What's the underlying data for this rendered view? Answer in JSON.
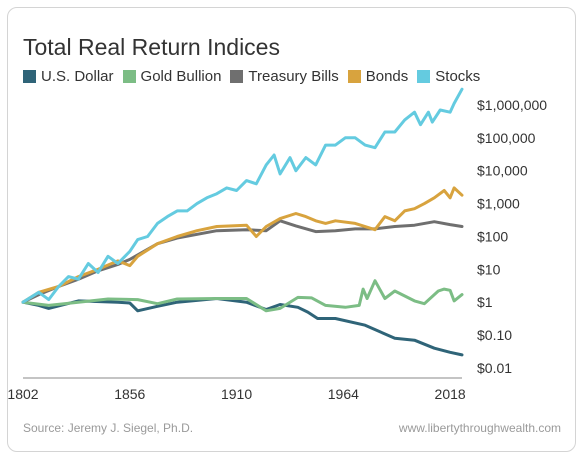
{
  "chart_data": {
    "type": "line",
    "title": "Total Real Return Indices",
    "yscale": "log",
    "ylim": [
      0.01,
      2000000
    ],
    "xlim": [
      1802,
      2024
    ],
    "x_ticks": [
      1802,
      1856,
      1910,
      1964,
      2018
    ],
    "y_ticks": [
      {
        "value": 1000000,
        "label": "$1,000,000"
      },
      {
        "value": 100000,
        "label": "$100,000"
      },
      {
        "value": 10000,
        "label": "$10,000"
      },
      {
        "value": 1000,
        "label": "$1,000"
      },
      {
        "value": 100,
        "label": "$100"
      },
      {
        "value": 10,
        "label": "$10"
      },
      {
        "value": 1,
        "label": "$1"
      },
      {
        "value": 0.1,
        "label": "$0.10"
      },
      {
        "value": 0.01,
        "label": "$0.01"
      }
    ],
    "legend_position": "top",
    "series": [
      {
        "name": "U.S. Dollar",
        "color": "#2f6478",
        "x": [
          1802,
          1810,
          1815,
          1830,
          1850,
          1856,
          1860,
          1870,
          1880,
          1900,
          1915,
          1925,
          1932,
          1941,
          1946,
          1951,
          1960,
          1975,
          1990,
          2000,
          2010,
          2018,
          2024
        ],
        "y": [
          1,
          0.8,
          0.65,
          1.1,
          1,
          0.95,
          0.55,
          0.75,
          1,
          1.3,
          1,
          0.6,
          0.85,
          0.7,
          0.5,
          0.32,
          0.32,
          0.2,
          0.08,
          0.07,
          0.04,
          0.03,
          0.025
        ]
      },
      {
        "name": "Gold Bullion",
        "color": "#7cbd85",
        "x": [
          1802,
          1815,
          1830,
          1845,
          1860,
          1870,
          1880,
          1900,
          1915,
          1925,
          1932,
          1941,
          1948,
          1955,
          1965,
          1972,
          1974,
          1976,
          1980,
          1985,
          1990,
          2000,
          2005,
          2012,
          2015,
          2018,
          2020,
          2024
        ],
        "y": [
          1,
          0.8,
          1,
          1.25,
          1.2,
          0.9,
          1.25,
          1.3,
          1.3,
          0.55,
          0.65,
          1.4,
          1.35,
          0.8,
          0.7,
          0.8,
          2.5,
          1.3,
          4.5,
          1.3,
          2.2,
          1.1,
          0.9,
          2.2,
          2.5,
          2.3,
          1.1,
          1.7
        ]
      },
      {
        "name": "Treasury Bills",
        "color": "#6f6f6f",
        "x": [
          1802,
          1810,
          1820,
          1830,
          1840,
          1850,
          1856,
          1870,
          1880,
          1900,
          1915,
          1925,
          1932,
          1940,
          1950,
          1960,
          1970,
          1980,
          1990,
          2000,
          2010,
          2018,
          2024
        ],
        "y": [
          1,
          1.7,
          3,
          5,
          9,
          14,
          20,
          60,
          90,
          150,
          160,
          150,
          300,
          210,
          140,
          150,
          170,
          170,
          200,
          220,
          280,
          230,
          200
        ]
      },
      {
        "name": "Bonds",
        "color": "#d8a33e",
        "x": [
          1802,
          1810,
          1820,
          1830,
          1840,
          1850,
          1856,
          1860,
          1870,
          1880,
          1890,
          1900,
          1915,
          1920,
          1925,
          1932,
          1940,
          1945,
          1950,
          1955,
          1960,
          1970,
          1980,
          1985,
          1990,
          1995,
          2000,
          2005,
          2010,
          2015,
          2018,
          2020,
          2024
        ],
        "y": [
          1,
          2,
          3,
          6,
          10,
          18,
          13,
          25,
          60,
          100,
          150,
          200,
          220,
          100,
          200,
          350,
          500,
          400,
          300,
          250,
          300,
          250,
          160,
          400,
          300,
          600,
          700,
          1000,
          1500,
          2500,
          1500,
          3000,
          1800
        ]
      },
      {
        "name": "Stocks",
        "color": "#64cbe0",
        "x": [
          1802,
          1810,
          1815,
          1820,
          1825,
          1830,
          1835,
          1840,
          1845,
          1850,
          1856,
          1860,
          1865,
          1870,
          1875,
          1880,
          1885,
          1890,
          1895,
          1900,
          1905,
          1910,
          1915,
          1920,
          1925,
          1929,
          1932,
          1937,
          1940,
          1945,
          1950,
          1955,
          1960,
          1965,
          1970,
          1975,
          1980,
          1985,
          1990,
          1995,
          2000,
          2003,
          2007,
          2009,
          2013,
          2018,
          2020,
          2024
        ],
        "y": [
          1,
          2,
          1.2,
          3,
          6,
          5,
          15,
          8,
          25,
          15,
          35,
          80,
          100,
          250,
          400,
          600,
          600,
          1000,
          1500,
          2000,
          3000,
          2500,
          5000,
          4000,
          15000,
          30000,
          8000,
          25000,
          10000,
          25000,
          15000,
          60000,
          60000,
          100000,
          100000,
          60000,
          50000,
          150000,
          150000,
          350000,
          600000,
          250000,
          600000,
          300000,
          700000,
          600000,
          1100000,
          3000000
        ]
      }
    ]
  },
  "footer": {
    "source": "Source: Jeremy J. Siegel, Ph.D.",
    "website": "www.libertythroughwealth.com"
  }
}
